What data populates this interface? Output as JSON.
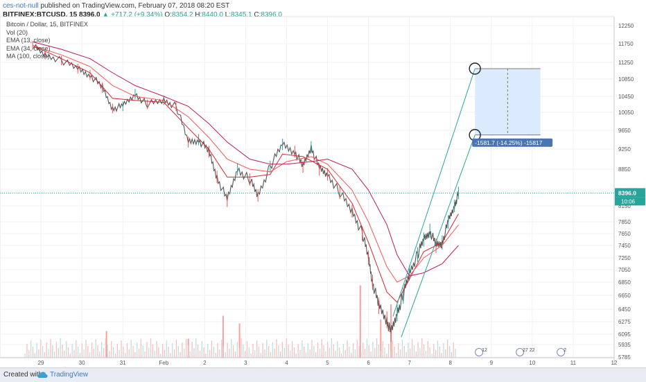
{
  "header": {
    "author": "ces-not-null",
    "published": "published on TradingView.com, February 07, 2018 08:20 EST",
    "symbol": "BITFINEX:BTCUSD, 15",
    "last": "8396.0",
    "change": "▲ +717.2 (+9.34%)",
    "open_label": "O:",
    "open": "8354.2",
    "high_label": "H:",
    "high": "8440.0",
    "low_label": "L:",
    "low": "8345.1",
    "close_label": "C:",
    "close": "8396.0"
  },
  "legend": {
    "title": "Bitcoin / Dollar, 15, BITFINEX",
    "vol": "Vol (20)",
    "ema13": "EMA (13, close)",
    "ema34": "EMA (34, close)",
    "ma100": "MA (100, close)"
  },
  "footer": {
    "created_with": "Created with",
    "brand": "TradingView"
  },
  "colors": {
    "up": "#26a69a",
    "down": "#ef5350",
    "ema13": "#d6242d",
    "ema34": "#ff5252",
    "ma100": "#c2185b",
    "channel": "#26a69a",
    "box_fill": "#dbeafd",
    "box_line": "#2962ff",
    "badge": "#4a74b4",
    "last_line": "#26a69a"
  },
  "chart_data": {
    "type": "candlestick",
    "x_tick_labels": [
      "29",
      "30",
      "31",
      "Feb",
      "2",
      "3",
      "4",
      "5",
      "6",
      "7",
      "8",
      "9",
      "10",
      "11",
      "12"
    ],
    "y_tick_labels": [
      12250,
      11750,
      11250,
      10850,
      10450,
      10050,
      9650,
      9250,
      8850,
      8150,
      7850,
      7650,
      7450,
      7250,
      7050,
      6850,
      6650,
      6450,
      6275,
      6095,
      5935,
      5785
    ],
    "last_price": 8396.0,
    "countdown": "10:06",
    "price_path": [
      {
        "x": 28.8,
        "y": 11700
      },
      {
        "x": 29.1,
        "y": 11450
      },
      {
        "x": 29.5,
        "y": 11300
      },
      {
        "x": 29.9,
        "y": 11100
      },
      {
        "x": 30.2,
        "y": 10950
      },
      {
        "x": 30.5,
        "y": 10650
      },
      {
        "x": 30.75,
        "y": 10150
      },
      {
        "x": 31.0,
        "y": 10200
      },
      {
        "x": 31.3,
        "y": 10500
      },
      {
        "x": 31.6,
        "y": 10250
      },
      {
        "x": 32.0,
        "y": 10350
      },
      {
        "x": 32.3,
        "y": 10200
      },
      {
        "x": 32.6,
        "y": 9400
      },
      {
        "x": 32.85,
        "y": 9450
      },
      {
        "x": 33.1,
        "y": 9200
      },
      {
        "x": 33.3,
        "y": 8700
      },
      {
        "x": 33.55,
        "y": 8250
      },
      {
        "x": 33.8,
        "y": 8850
      },
      {
        "x": 34.1,
        "y": 8650
      },
      {
        "x": 34.3,
        "y": 8350
      },
      {
        "x": 34.6,
        "y": 8900
      },
      {
        "x": 34.9,
        "y": 9350
      },
      {
        "x": 35.2,
        "y": 9200
      },
      {
        "x": 35.4,
        "y": 8900
      },
      {
        "x": 35.6,
        "y": 9300
      },
      {
        "x": 35.8,
        "y": 8850
      },
      {
        "x": 36.0,
        "y": 8750
      },
      {
        "x": 36.3,
        "y": 8400
      },
      {
        "x": 36.6,
        "y": 8050
      },
      {
        "x": 36.85,
        "y": 7650
      },
      {
        "x": 37.0,
        "y": 7250
      },
      {
        "x": 37.1,
        "y": 6850
      },
      {
        "x": 37.25,
        "y": 6500
      },
      {
        "x": 37.45,
        "y": 6300
      },
      {
        "x": 37.55,
        "y": 6100
      },
      {
        "x": 37.7,
        "y": 6400
      },
      {
        "x": 37.85,
        "y": 6650
      },
      {
        "x": 38.0,
        "y": 7000
      },
      {
        "x": 38.2,
        "y": 7300
      },
      {
        "x": 38.35,
        "y": 7550
      },
      {
        "x": 38.5,
        "y": 7700
      },
      {
        "x": 38.65,
        "y": 7450
      },
      {
        "x": 38.8,
        "y": 7500
      },
      {
        "x": 38.95,
        "y": 7850
      },
      {
        "x": 39.1,
        "y": 8150
      },
      {
        "x": 39.2,
        "y": 8396
      }
    ],
    "ema13": [
      {
        "x": 28.8,
        "y": 11700
      },
      {
        "x": 29.5,
        "y": 11350
      },
      {
        "x": 30.2,
        "y": 11000
      },
      {
        "x": 30.75,
        "y": 10400
      },
      {
        "x": 31.3,
        "y": 10350
      },
      {
        "x": 32.0,
        "y": 10300
      },
      {
        "x": 32.6,
        "y": 9700
      },
      {
        "x": 33.1,
        "y": 9250
      },
      {
        "x": 33.55,
        "y": 8700
      },
      {
        "x": 34.1,
        "y": 8700
      },
      {
        "x": 34.6,
        "y": 8750
      },
      {
        "x": 34.9,
        "y": 9150
      },
      {
        "x": 35.4,
        "y": 9100
      },
      {
        "x": 36.0,
        "y": 8850
      },
      {
        "x": 36.6,
        "y": 8200
      },
      {
        "x": 37.0,
        "y": 7500
      },
      {
        "x": 37.45,
        "y": 6700
      },
      {
        "x": 37.7,
        "y": 6550
      },
      {
        "x": 38.0,
        "y": 6900
      },
      {
        "x": 38.35,
        "y": 7350
      },
      {
        "x": 38.8,
        "y": 7500
      },
      {
        "x": 39.2,
        "y": 8000
      }
    ],
    "ema34": [
      {
        "x": 28.8,
        "y": 11700
      },
      {
        "x": 29.5,
        "y": 11450
      },
      {
        "x": 30.2,
        "y": 11150
      },
      {
        "x": 30.75,
        "y": 10700
      },
      {
        "x": 31.3,
        "y": 10450
      },
      {
        "x": 32.0,
        "y": 10350
      },
      {
        "x": 32.6,
        "y": 9950
      },
      {
        "x": 33.1,
        "y": 9500
      },
      {
        "x": 33.55,
        "y": 9050
      },
      {
        "x": 34.1,
        "y": 8850
      },
      {
        "x": 34.6,
        "y": 8800
      },
      {
        "x": 35.0,
        "y": 9000
      },
      {
        "x": 35.6,
        "y": 9100
      },
      {
        "x": 36.0,
        "y": 8950
      },
      {
        "x": 36.6,
        "y": 8450
      },
      {
        "x": 37.0,
        "y": 7850
      },
      {
        "x": 37.45,
        "y": 7100
      },
      {
        "x": 37.7,
        "y": 6850
      },
      {
        "x": 38.0,
        "y": 6950
      },
      {
        "x": 38.35,
        "y": 7250
      },
      {
        "x": 38.8,
        "y": 7450
      },
      {
        "x": 39.2,
        "y": 7800
      }
    ],
    "ma100": [
      {
        "x": 28.8,
        "y": 11800
      },
      {
        "x": 29.5,
        "y": 11600
      },
      {
        "x": 30.2,
        "y": 11350
      },
      {
        "x": 30.75,
        "y": 11000
      },
      {
        "x": 31.3,
        "y": 10700
      },
      {
        "x": 32.0,
        "y": 10450
      },
      {
        "x": 32.6,
        "y": 10200
      },
      {
        "x": 33.1,
        "y": 9800
      },
      {
        "x": 33.55,
        "y": 9400
      },
      {
        "x": 34.1,
        "y": 9050
      },
      {
        "x": 34.6,
        "y": 8950
      },
      {
        "x": 35.0,
        "y": 8950
      },
      {
        "x": 35.6,
        "y": 9000
      },
      {
        "x": 36.0,
        "y": 9050
      },
      {
        "x": 36.6,
        "y": 8850
      },
      {
        "x": 37.0,
        "y": 8450
      },
      {
        "x": 37.45,
        "y": 7800
      },
      {
        "x": 37.7,
        "y": 7300
      },
      {
        "x": 38.0,
        "y": 6950
      },
      {
        "x": 38.35,
        "y": 7000
      },
      {
        "x": 38.8,
        "y": 7150
      },
      {
        "x": 39.2,
        "y": 7450
      }
    ],
    "channel_upper": [
      {
        "x": 37.6,
        "y": 6350
      },
      {
        "x": 39.6,
        "y": 11100
      }
    ],
    "channel_lower": [
      {
        "x": 37.8,
        "y": 6050
      },
      {
        "x": 39.6,
        "y": 9550
      }
    ],
    "measure_box": {
      "x_start": 39.6,
      "x_end": 41.2,
      "y_top": 11100,
      "y_bottom": 9550,
      "label": "-1581.7 (-14.25%) -15817"
    },
    "volume_spikes": [
      {
        "x": 30.6,
        "v": 0.35
      },
      {
        "x": 32.6,
        "v": 0.25
      },
      {
        "x": 33.45,
        "v": 0.55
      },
      {
        "x": 33.85,
        "v": 0.45
      },
      {
        "x": 36.8,
        "v": 0.95
      },
      {
        "x": 37.3,
        "v": 0.5
      },
      {
        "x": 37.55,
        "v": 0.7
      }
    ],
    "event_markers": [
      {
        "x": 39.7,
        "label": "12"
      },
      {
        "x": 40.7,
        "label": "27 22"
      },
      {
        "x": 41.7,
        "label": "2"
      }
    ]
  }
}
